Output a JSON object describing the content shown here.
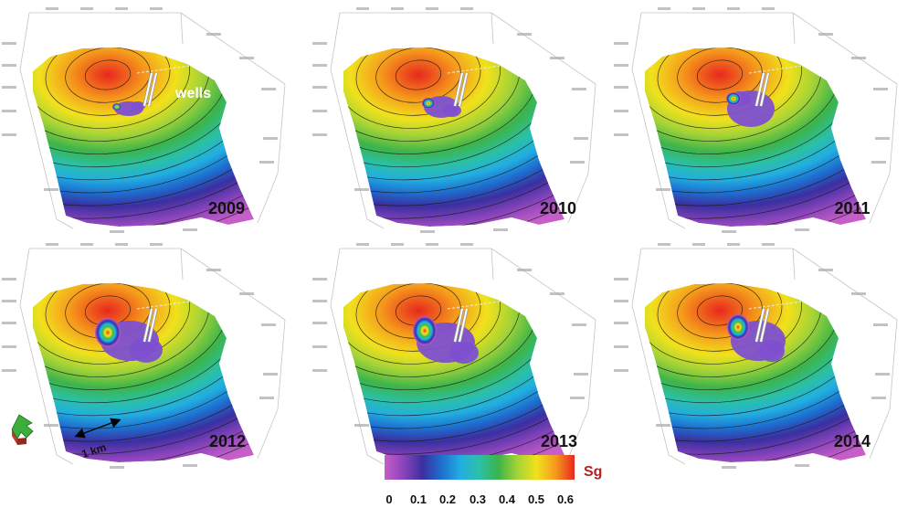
{
  "chart_data": {
    "type": "heatmap",
    "panels": [
      "2009",
      "2010",
      "2011",
      "2012",
      "2013",
      "2014"
    ],
    "annotations": {
      "wells": "wells",
      "scale": "1 km"
    },
    "colorbar": {
      "label": "Sg",
      "range": [
        0,
        0.6
      ],
      "ticks": [
        "0",
        "0.1",
        "0.2",
        "0.3",
        "0.4",
        "0.5",
        "0.6"
      ],
      "colors": [
        "#c55ec8",
        "#8a44bb",
        "#3b2fa0",
        "#1d6fcf",
        "#22aee0",
        "#2bc0a6",
        "#3cb44a",
        "#a4d337",
        "#f1e11c",
        "#f59a1c",
        "#e8281e"
      ]
    }
  },
  "colors": {
    "year_text": "#111111",
    "wells_text": "#ffffff",
    "colorbar_label": "#b22222",
    "tick_text": "#111111",
    "plume": "#7d50d0",
    "contour": "#1a1a1a",
    "wireframe": "#c4c4c4",
    "well_line": "#ffffff"
  }
}
